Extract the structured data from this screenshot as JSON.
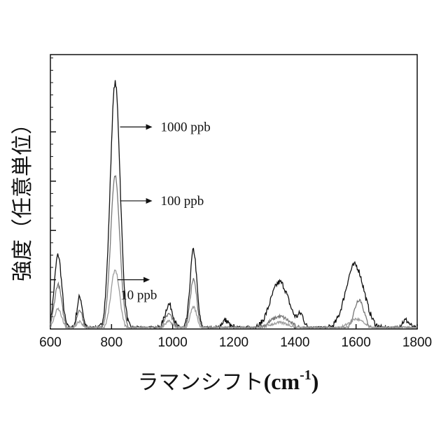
{
  "chart_data": {
    "type": "line",
    "title": "",
    "xlabel": "ラマンシフト(cm-1)",
    "xlabel_parts": {
      "main": "ラマンシフト",
      "unit_open": "(cm",
      "unit_sup": "-1",
      "unit_close": ")"
    },
    "ylabel": "強度（任意単位）",
    "xlim": [
      600,
      1800
    ],
    "ylim": [
      0,
      1
    ],
    "x_ticks": [
      600,
      800,
      1000,
      1200,
      1400,
      1600,
      1800
    ],
    "x_tick_labels": [
      "600",
      "800",
      "1000",
      "1200",
      "1400",
      "1600",
      "1800"
    ],
    "y_major_ticks": [
      0.2,
      0.4,
      0.6,
      0.8
    ],
    "y_minor_step": 0.05,
    "series": [
      {
        "name": "1000 ppb",
        "color": "#111111",
        "peaks": [
          [
            625,
            0.3,
            12
          ],
          [
            696,
            0.13,
            9
          ],
          [
            812,
            1.0,
            16
          ],
          [
            988,
            0.1,
            13
          ],
          [
            1068,
            0.32,
            11
          ],
          [
            1172,
            0.035,
            12
          ],
          [
            1350,
            0.19,
            30
          ],
          [
            1420,
            0.05,
            10
          ],
          [
            1596,
            0.26,
            30
          ],
          [
            1762,
            0.035,
            13
          ]
        ],
        "noise": 0.012
      },
      {
        "name": "100 ppb",
        "color": "#777777",
        "peaks": [
          [
            625,
            0.18,
            12
          ],
          [
            696,
            0.08,
            9
          ],
          [
            812,
            0.62,
            15
          ],
          [
            988,
            0.06,
            13
          ],
          [
            1068,
            0.2,
            11
          ],
          [
            1350,
            0.05,
            32
          ],
          [
            1610,
            0.12,
            16
          ]
        ],
        "noise": 0.008
      },
      {
        "name": "10 ppb",
        "color": "#9a9a9a",
        "peaks": [
          [
            625,
            0.08,
            12
          ],
          [
            696,
            0.03,
            9
          ],
          [
            812,
            0.24,
            14
          ],
          [
            988,
            0.03,
            13
          ],
          [
            1068,
            0.09,
            11
          ],
          [
            1350,
            0.025,
            35
          ],
          [
            1600,
            0.04,
            25
          ]
        ],
        "noise": 0.006
      }
    ],
    "annotations": [
      {
        "text": "1000 ppb",
        "x": 828,
        "y": 0.82
      },
      {
        "text": "100 ppb",
        "x": 828,
        "y": 0.52
      },
      {
        "text": "10 ppb",
        "x": 820,
        "y": 0.2
      }
    ]
  }
}
